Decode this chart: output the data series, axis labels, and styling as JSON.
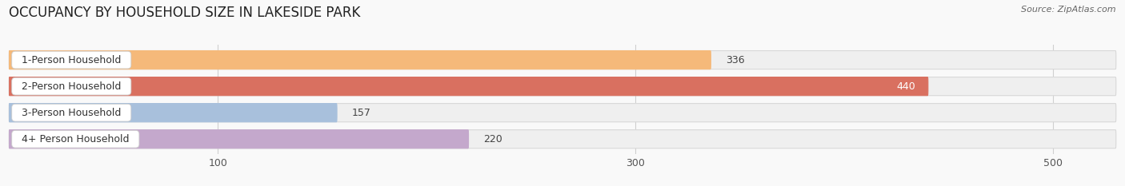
{
  "title": "OCCUPANCY BY HOUSEHOLD SIZE IN LAKESIDE PARK",
  "source": "Source: ZipAtlas.com",
  "categories": [
    "1-Person Household",
    "2-Person Household",
    "3-Person Household",
    "4+ Person Household"
  ],
  "values": [
    336,
    440,
    157,
    220
  ],
  "bar_colors": [
    "#f5b97a",
    "#d97060",
    "#a8c0dc",
    "#c4a8cc"
  ],
  "bar_bg_color": "#efefef",
  "bar_border_color": "#d8d8d8",
  "xlim": [
    0,
    530
  ],
  "xticks": [
    100,
    300,
    500
  ],
  "bg_color": "#f9f9f9",
  "grid_color": "#d0d0d0",
  "title_fontsize": 12,
  "source_fontsize": 8,
  "tick_fontsize": 9,
  "label_fontsize": 9,
  "value_fontsize": 9,
  "value_inside_threshold": 0.83
}
